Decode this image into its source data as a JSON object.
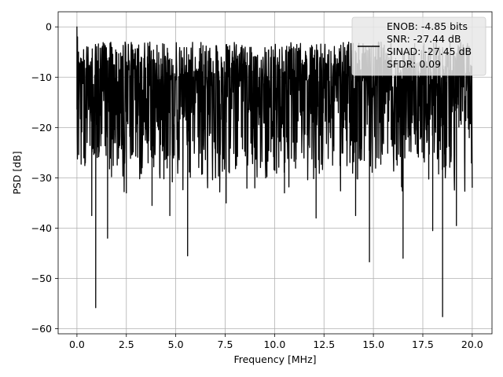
{
  "chart_data": {
    "type": "line",
    "title": "",
    "xlabel": "Frequency [MHz]",
    "ylabel": "PSD [dB]",
    "xlim": [
      -0.95,
      21.0
    ],
    "ylim": [
      -61.0,
      3.0
    ],
    "xticks": [
      0.0,
      2.5,
      5.0,
      7.5,
      10.0,
      12.5,
      15.0,
      17.5,
      20.0
    ],
    "xtick_labels": [
      "0.0",
      "2.5",
      "5.0",
      "7.5",
      "10.0",
      "12.5",
      "15.0",
      "17.5",
      "20.0"
    ],
    "yticks": [
      0,
      -10,
      -20,
      -30,
      -40,
      -50,
      -60
    ],
    "ytick_labels": [
      "0",
      "−10",
      "−20",
      "−30",
      "−40",
      "−50",
      "−60"
    ],
    "grid": true,
    "legend_position": "upper-right",
    "series": [
      {
        "color": "#000000",
        "x_start": 0.0,
        "x_end": 20.0,
        "typical_band": [
          -3,
          -25
        ],
        "peaks": [
          {
            "x": 0.0,
            "y": 0.0
          },
          {
            "x": 0.03,
            "y": -2.0
          },
          {
            "x": 0.08,
            "y": -5.0
          }
        ],
        "dips": [
          {
            "x": 0.95,
            "y": -55.8
          },
          {
            "x": 1.55,
            "y": -42.0
          },
          {
            "x": 0.75,
            "y": -37.5
          },
          {
            "x": 4.7,
            "y": -37.5
          },
          {
            "x": 5.6,
            "y": -45.5
          },
          {
            "x": 7.55,
            "y": -35.0
          },
          {
            "x": 12.1,
            "y": -38.0
          },
          {
            "x": 14.1,
            "y": -37.5
          },
          {
            "x": 14.8,
            "y": -46.7
          },
          {
            "x": 16.5,
            "y": -46.0
          },
          {
            "x": 18.5,
            "y": -57.6
          },
          {
            "x": 18.0,
            "y": -40.5
          },
          {
            "x": 19.2,
            "y": -39.5
          },
          {
            "x": 10.5,
            "y": -33.0
          },
          {
            "x": 3.8,
            "y": -35.5
          },
          {
            "x": 2.5,
            "y": -33.0
          },
          {
            "x": 9.0,
            "y": -32.0
          }
        ]
      }
    ]
  },
  "legend": {
    "lines": [
      "ENOB: -4.85 bits",
      "SNR: -27.44 dB",
      "SINAD: -27.45 dB",
      "SFDR: 0.09"
    ]
  }
}
